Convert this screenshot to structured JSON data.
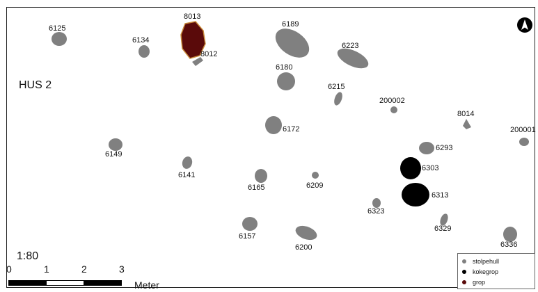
{
  "title": "HUS 2",
  "scale_text": "1:80",
  "scale_ticks": [
    "0",
    "1",
    "2",
    "3"
  ],
  "scale_unit": "Meter",
  "colors": {
    "stolpehull": "#808080",
    "kokegrop": "#000000",
    "grop": "#5a0a0a",
    "grop_outline": "#c98a3a"
  },
  "legend": [
    {
      "label": "stolpehull",
      "symbol": "gray-dot-icon"
    },
    {
      "label": "kokegrop",
      "symbol": "black-dot-icon"
    },
    {
      "label": "grop",
      "symbol": "dark-red-dot-icon"
    }
  ],
  "north_arrow": "north-arrow-icon",
  "features": [
    {
      "id": "8013",
      "type": "grop"
    },
    {
      "id": "8012",
      "type": "stolpehull"
    },
    {
      "id": "6125",
      "type": "stolpehull"
    },
    {
      "id": "6134",
      "type": "stolpehull"
    },
    {
      "id": "6189",
      "type": "stolpehull"
    },
    {
      "id": "6223",
      "type": "stolpehull"
    },
    {
      "id": "6180",
      "type": "stolpehull"
    },
    {
      "id": "6215",
      "type": "stolpehull"
    },
    {
      "id": "200002",
      "type": "stolpehull"
    },
    {
      "id": "8014",
      "type": "stolpehull"
    },
    {
      "id": "200001",
      "type": "stolpehull"
    },
    {
      "id": "6172",
      "type": "stolpehull"
    },
    {
      "id": "6293",
      "type": "stolpehull"
    },
    {
      "id": "6149",
      "type": "stolpehull"
    },
    {
      "id": "6141",
      "type": "stolpehull"
    },
    {
      "id": "6303",
      "type": "kokegrop"
    },
    {
      "id": "6165",
      "type": "stolpehull"
    },
    {
      "id": "6209",
      "type": "stolpehull"
    },
    {
      "id": "6313",
      "type": "kokegrop"
    },
    {
      "id": "6323",
      "type": "stolpehull"
    },
    {
      "id": "6329",
      "type": "stolpehull"
    },
    {
      "id": "6157",
      "type": "stolpehull"
    },
    {
      "id": "6200",
      "type": "stolpehull"
    },
    {
      "id": "6336",
      "type": "stolpehull"
    }
  ]
}
